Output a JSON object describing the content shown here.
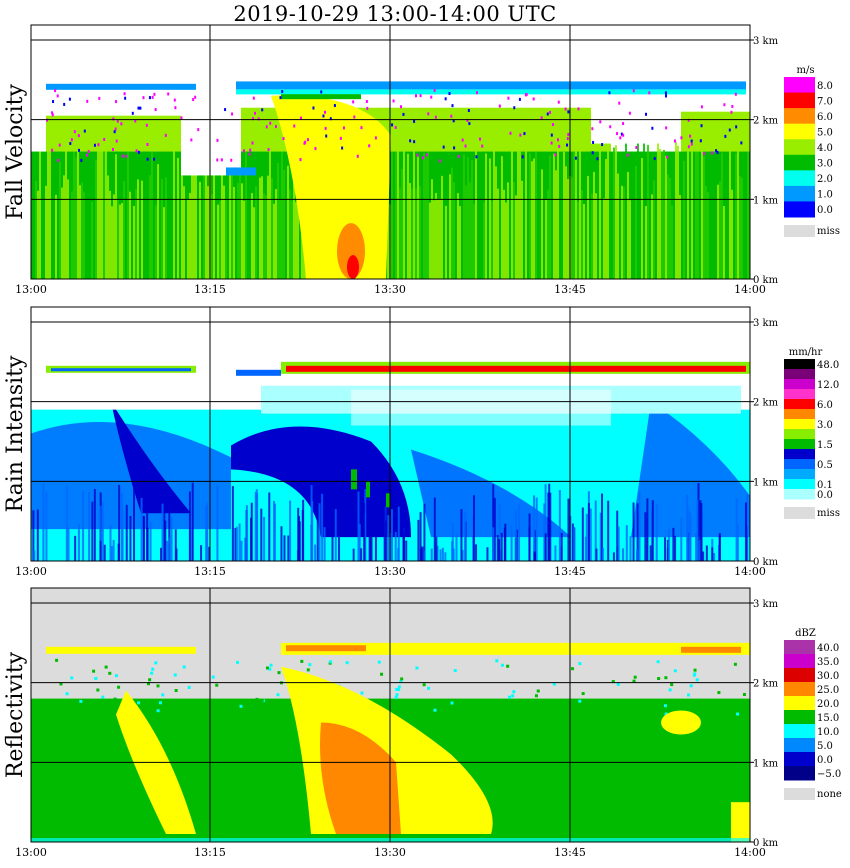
{
  "title": "2019-10-29   13:00-14:00 UTC",
  "x_ticks": [
    "13:00",
    "13:15",
    "13:30",
    "13:45",
    "14:00"
  ],
  "y_ticks": [
    "0 km",
    "1 km",
    "2 km",
    "3 km"
  ],
  "panels": [
    {
      "id": "fall-velocity",
      "label": "Fall Velocity",
      "unit": "m/s",
      "missing_label": "miss",
      "background": "#ffffff",
      "legend": [
        {
          "label": "8.0",
          "color": "#ff00ff"
        },
        {
          "label": "7.0",
          "color": "#ff0000"
        },
        {
          "label": "6.0",
          "color": "#ff8c00"
        },
        {
          "label": "5.0",
          "color": "#ffff00"
        },
        {
          "label": "4.0",
          "color": "#99ee00"
        },
        {
          "label": "3.0",
          "color": "#00bb00"
        },
        {
          "label": "2.0",
          "color": "#00ffee"
        },
        {
          "label": "1.0",
          "color": "#0099ff"
        },
        {
          "label": "0.0",
          "color": "#0000ff"
        }
      ]
    },
    {
      "id": "rain-intensity",
      "label": "Rain Intensity",
      "unit": "mm/hr",
      "missing_label": "miss",
      "background": "#ffffff",
      "legend": [
        {
          "label": "48.0",
          "color": "#000000"
        },
        {
          "label": "",
          "color": "#7a0077"
        },
        {
          "label": "12.0",
          "color": "#cc00cc"
        },
        {
          "label": "",
          "color": "#ff33cc"
        },
        {
          "label": "6.0",
          "color": "#ff0000"
        },
        {
          "label": "",
          "color": "#ff8800"
        },
        {
          "label": "3.0",
          "color": "#ffff00"
        },
        {
          "label": "",
          "color": "#88ee00"
        },
        {
          "label": "1.5",
          "color": "#00bb00"
        },
        {
          "label": "",
          "color": "#0000cc"
        },
        {
          "label": "0.5",
          "color": "#0066ff"
        },
        {
          "label": "",
          "color": "#00aaff"
        },
        {
          "label": "0.1",
          "color": "#00ffff"
        },
        {
          "label": "0.0",
          "color": "#aaffff"
        }
      ]
    },
    {
      "id": "reflectivity",
      "label": "Reflectivity",
      "unit": "dBZ",
      "missing_label": "none",
      "background": "#dcdcdc",
      "legend": [
        {
          "label": "40.0",
          "color": "#aa33aa"
        },
        {
          "label": "35.0",
          "color": "#cc00cc"
        },
        {
          "label": "30.0",
          "color": "#dd0000"
        },
        {
          "label": "25.0",
          "color": "#ff8800"
        },
        {
          "label": "20.0",
          "color": "#ffff00"
        },
        {
          "label": "15.0",
          "color": "#00bb00"
        },
        {
          "label": "10.0",
          "color": "#00ffff"
        },
        {
          "label": "5.0",
          "color": "#0088ff"
        },
        {
          "label": "0.0",
          "color": "#0000cc"
        },
        {
          "label": "−5.0",
          "color": "#000088"
        }
      ]
    }
  ],
  "chart_data": {
    "type": "heatmap",
    "x_range": [
      "13:00",
      "14:00"
    ],
    "y_range_km": [
      0,
      3.0
    ],
    "panels": [
      {
        "name": "Fall Velocity",
        "unit": "m/s",
        "notes": "bright band near 2.4 km; yellow/orange core 13:21-13:30",
        "color_levels": [
          0.0,
          1.0,
          2.0,
          3.0,
          4.0,
          5.0,
          6.0,
          7.0,
          8.0
        ]
      },
      {
        "name": "Rain Intensity",
        "unit": "mm/hr",
        "notes": "red bright band near 2.35 km; dark blue core 13:20-13:31 below 1.7 km",
        "color_levels": [
          0.0,
          0.1,
          0.5,
          1.5,
          3.0,
          6.0,
          12.0,
          48.0
        ]
      },
      {
        "name": "Reflectivity",
        "unit": "dBZ",
        "notes": "orange core 13:22-13:30 between 0.2 and 1.4 km; bright band near 2.35 km",
        "color_levels": [
          -5.0,
          0.0,
          5.0,
          10.0,
          15.0,
          20.0,
          25.0,
          30.0,
          35.0,
          40.0
        ]
      }
    ]
  }
}
